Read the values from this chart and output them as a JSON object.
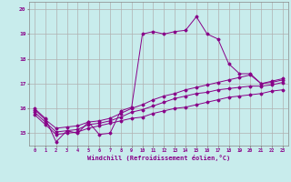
{
  "xlabel": "Windchill (Refroidissement éolien,°C)",
  "background_color": "#c8ecec",
  "grid_color": "#b0b0b0",
  "line_color": "#880088",
  "xlim": [
    -0.5,
    23.5
  ],
  "ylim": [
    14.5,
    20.3
  ],
  "yticks": [
    15,
    16,
    17,
    18,
    19,
    20
  ],
  "xticks": [
    0,
    1,
    2,
    3,
    4,
    5,
    6,
    7,
    8,
    9,
    10,
    11,
    12,
    13,
    14,
    15,
    16,
    17,
    18,
    19,
    20,
    21,
    22,
    23
  ],
  "series1_x": [
    0,
    1,
    2,
    3,
    4,
    5,
    6,
    7,
    8,
    9,
    10,
    11,
    12,
    13,
    14,
    15,
    16,
    17,
    18,
    19,
    20,
    21,
    22,
    23
  ],
  "series1_y": [
    16.0,
    15.6,
    14.65,
    15.1,
    15.0,
    15.45,
    14.95,
    15.0,
    15.9,
    16.05,
    19.0,
    19.1,
    19.0,
    19.1,
    19.15,
    19.7,
    19.0,
    18.8,
    17.8,
    17.4,
    17.4,
    17.0,
    17.1,
    17.2
  ],
  "series2_x": [
    0,
    1,
    2,
    3,
    4,
    5,
    6,
    7,
    8,
    9,
    10,
    11,
    12,
    13,
    14,
    15,
    16,
    17,
    18,
    19,
    20,
    21,
    22,
    23
  ],
  "series2_y": [
    15.95,
    15.55,
    15.2,
    15.25,
    15.3,
    15.45,
    15.5,
    15.6,
    15.8,
    16.0,
    16.15,
    16.35,
    16.5,
    16.6,
    16.75,
    16.85,
    16.95,
    17.05,
    17.15,
    17.25,
    17.35,
    17.0,
    17.05,
    17.15
  ],
  "series3_x": [
    0,
    1,
    2,
    3,
    4,
    5,
    6,
    7,
    8,
    9,
    10,
    11,
    12,
    13,
    14,
    15,
    16,
    17,
    18,
    19,
    20,
    21,
    22,
    23
  ],
  "series3_y": [
    15.85,
    15.45,
    15.05,
    15.1,
    15.15,
    15.35,
    15.4,
    15.5,
    15.65,
    15.85,
    15.95,
    16.1,
    16.25,
    16.4,
    16.5,
    16.6,
    16.65,
    16.75,
    16.8,
    16.85,
    16.9,
    16.9,
    16.95,
    17.05
  ],
  "series4_x": [
    0,
    1,
    2,
    3,
    4,
    5,
    6,
    7,
    8,
    9,
    10,
    11,
    12,
    13,
    14,
    15,
    16,
    17,
    18,
    19,
    20,
    21,
    22,
    23
  ],
  "series4_y": [
    15.75,
    15.35,
    14.95,
    15.0,
    15.05,
    15.2,
    15.3,
    15.4,
    15.5,
    15.6,
    15.65,
    15.8,
    15.9,
    16.0,
    16.05,
    16.15,
    16.25,
    16.35,
    16.45,
    16.5,
    16.55,
    16.6,
    16.7,
    16.75
  ]
}
